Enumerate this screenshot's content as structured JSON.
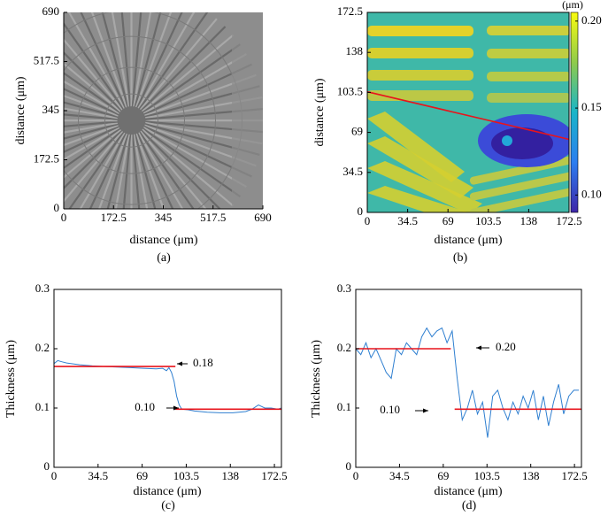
{
  "chart_data": [
    {
      "type": "image",
      "caption": "(a)",
      "xlabel": "distance (μm)",
      "ylabel": "distance (μm)",
      "xlim": [
        0,
        690
      ],
      "ylim": [
        0,
        690
      ],
      "xticks": [
        0,
        172.5,
        345,
        517.5,
        690
      ],
      "yticks": [
        0,
        172.5,
        345,
        517.5,
        690
      ]
    },
    {
      "type": "heatmap",
      "caption": "(b)",
      "xlabel": "distance (μm)",
      "ylabel": "distance (μm)",
      "xlim": [
        0,
        172.5
      ],
      "ylim": [
        0,
        172.5
      ],
      "xticks": [
        0,
        34.5,
        69,
        103.5,
        138,
        172.5
      ],
      "yticks": [
        0,
        34.5,
        69,
        103.5,
        138,
        172.5
      ],
      "colorbar_label": "(μm)",
      "clim": [
        0.09,
        0.205
      ],
      "cticks": [
        {
          "value": 0.1,
          "label": "0.10"
        },
        {
          "value": 0.15,
          "label": "0.15"
        },
        {
          "value": 0.2,
          "label": "0.20"
        }
      ],
      "series": [
        {
          "color": "#e8141c",
          "x": [
            0,
            172.5
          ],
          "values": [
            104,
            63
          ]
        }
      ]
    },
    {
      "type": "line",
      "caption": "(c)",
      "xlabel": "distance (μm)",
      "ylabel": "Thickness (μm)",
      "xlim": [
        0,
        178
      ],
      "ylim": [
        0,
        0.3
      ],
      "xticks": [
        0,
        34.5,
        69,
        103.5,
        138,
        172.5
      ],
      "yticks": [
        0,
        0.1,
        0.2,
        0.3
      ],
      "annotations": [
        "0.18",
        "0.10"
      ],
      "series": [
        {
          "color": "#2f7fd0",
          "x": [
            0,
            3,
            6,
            10,
            20,
            30,
            40,
            50,
            60,
            70,
            80,
            85,
            88,
            90,
            92,
            94,
            96,
            98,
            100,
            105,
            110,
            120,
            130,
            140,
            150,
            155,
            160,
            165,
            170,
            175,
            178
          ],
          "values": [
            0.175,
            0.18,
            0.178,
            0.176,
            0.173,
            0.171,
            0.17,
            0.169,
            0.168,
            0.167,
            0.166,
            0.167,
            0.163,
            0.168,
            0.16,
            0.145,
            0.12,
            0.105,
            0.098,
            0.097,
            0.095,
            0.093,
            0.092,
            0.092,
            0.094,
            0.098,
            0.105,
            0.1,
            0.1,
            0.098,
            0.1
          ]
        },
        {
          "color": "#e8141c",
          "x": [
            0,
            95
          ],
          "values": [
            0.17,
            0.17
          ]
        },
        {
          "color": "#e8141c",
          "x": [
            95,
            178
          ],
          "values": [
            0.098,
            0.098
          ]
        }
      ]
    },
    {
      "type": "line",
      "caption": "(d)",
      "xlabel": "distance (μm)",
      "ylabel": "Thickness (μm)",
      "xlim": [
        0,
        178
      ],
      "ylim": [
        0,
        0.3
      ],
      "xticks": [
        0,
        34.5,
        69,
        103.5,
        138,
        172.5
      ],
      "yticks": [
        0,
        0.1,
        0.2,
        0.3
      ],
      "annotations": [
        "0.20",
        "0.10"
      ],
      "series": [
        {
          "color": "#2f7fd0",
          "x": [
            0,
            4,
            8,
            12,
            16,
            20,
            24,
            28,
            32,
            36,
            40,
            44,
            48,
            52,
            56,
            60,
            64,
            68,
            72,
            76,
            80,
            84,
            88,
            92,
            96,
            100,
            104,
            108,
            112,
            116,
            120,
            124,
            128,
            132,
            136,
            140,
            144,
            148,
            152,
            156,
            160,
            164,
            168,
            172,
            176
          ],
          "values": [
            0.2,
            0.19,
            0.21,
            0.185,
            0.2,
            0.18,
            0.16,
            0.15,
            0.2,
            0.19,
            0.21,
            0.2,
            0.19,
            0.22,
            0.235,
            0.22,
            0.23,
            0.235,
            0.21,
            0.23,
            0.15,
            0.08,
            0.1,
            0.13,
            0.09,
            0.11,
            0.05,
            0.12,
            0.13,
            0.1,
            0.08,
            0.11,
            0.09,
            0.12,
            0.1,
            0.13,
            0.08,
            0.12,
            0.07,
            0.11,
            0.14,
            0.09,
            0.12,
            0.13,
            0.13
          ]
        },
        {
          "color": "#e8141c",
          "x": [
            0,
            75
          ],
          "values": [
            0.2,
            0.2
          ]
        },
        {
          "color": "#e8141c",
          "x": [
            78,
            178
          ],
          "values": [
            0.098,
            0.098
          ]
        }
      ]
    }
  ]
}
